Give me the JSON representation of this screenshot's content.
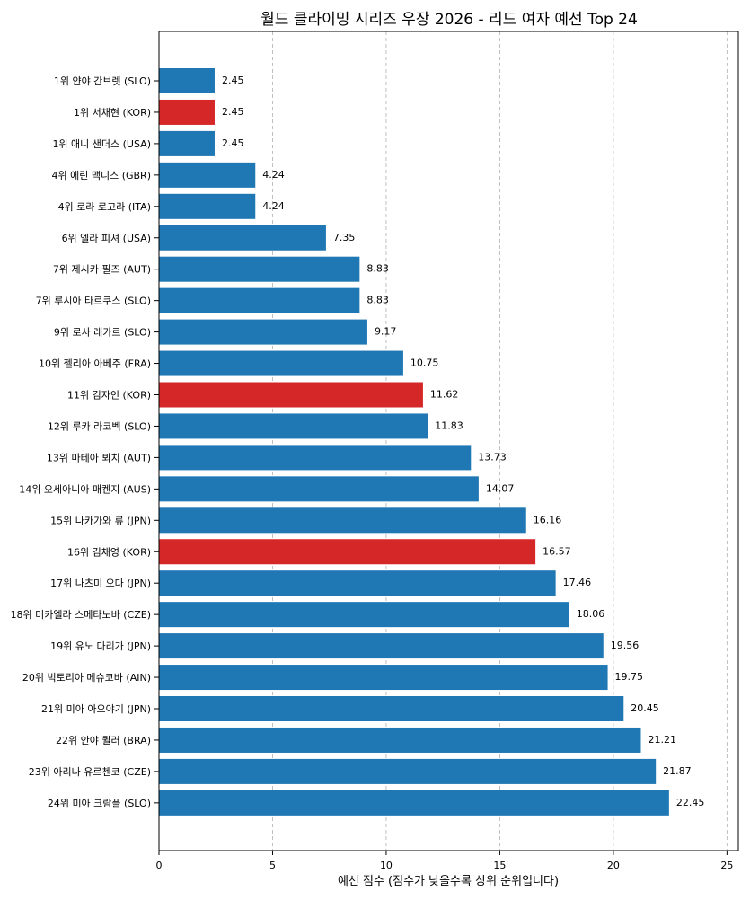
{
  "chart_data": {
    "type": "bar",
    "orientation": "horizontal",
    "title": "월드 클라이밍 시리즈 우장 2026 - 리드 여자 예선 Top 24",
    "xlabel": "예선 점수 (점수가 낮을수록 상위 순위입니다)",
    "ylabel": "",
    "xlim": [
      0,
      25.5
    ],
    "xticks": [
      0,
      5,
      10,
      15,
      20,
      25
    ],
    "grid": "x-dashed",
    "colors": {
      "default": "#1f77b4",
      "highlight": "#d62728"
    },
    "categories": [
      "1위 얀야 간브렛 (SLO)",
      "1위 서채현 (KOR)",
      "1위 애니 샌더스 (USA)",
      "4위 에린 맥니스 (GBR)",
      "4위 로라 로고라 (ITA)",
      "6위 엘라 피셔 (USA)",
      "7위 제시카 필즈 (AUT)",
      "7위 루시아 타르쿠스 (SLO)",
      "9위 로사 레카르 (SLO)",
      "10위 젤리아 아베주 (FRA)",
      "11위 김자인 (KOR)",
      "12위 루카 라코벡 (SLO)",
      "13위 마테아 뵈치 (AUT)",
      "14위 오세아니아 매켄지 (AUS)",
      "15위 나카가와 류 (JPN)",
      "16위 김채영 (KOR)",
      "17위 나츠미 오다 (JPN)",
      "18위 미카엘라 스메타노바 (CZE)",
      "19위 유노 다리가 (JPN)",
      "20위 빅토리아 메슈코바 (AIN)",
      "21위 미아 아오야기 (JPN)",
      "22위 안야 퀼러 (BRA)",
      "23위 아리나 유르첸코 (CZE)",
      "24위 미아 크람플 (SLO)"
    ],
    "values": [
      2.45,
      2.45,
      2.45,
      4.24,
      4.24,
      7.35,
      8.83,
      8.83,
      9.17,
      10.75,
      11.62,
      11.83,
      13.73,
      14.07,
      16.16,
      16.57,
      17.46,
      18.06,
      19.56,
      19.75,
      20.45,
      21.21,
      21.87,
      22.45
    ],
    "value_labels": [
      "2.45",
      "2.45",
      "2.45",
      "4.24",
      "4.24",
      "7.35",
      "8.83",
      "8.83",
      "9.17",
      "10.75",
      "11.62",
      "11.83",
      "13.73",
      "14.07",
      "16.16",
      "16.57",
      "17.46",
      "18.06",
      "19.56",
      "19.75",
      "20.45",
      "21.21",
      "21.87",
      "22.45"
    ],
    "highlighted": [
      false,
      true,
      false,
      false,
      false,
      false,
      false,
      false,
      false,
      false,
      true,
      false,
      false,
      false,
      false,
      true,
      false,
      false,
      false,
      false,
      false,
      false,
      false,
      false
    ]
  }
}
